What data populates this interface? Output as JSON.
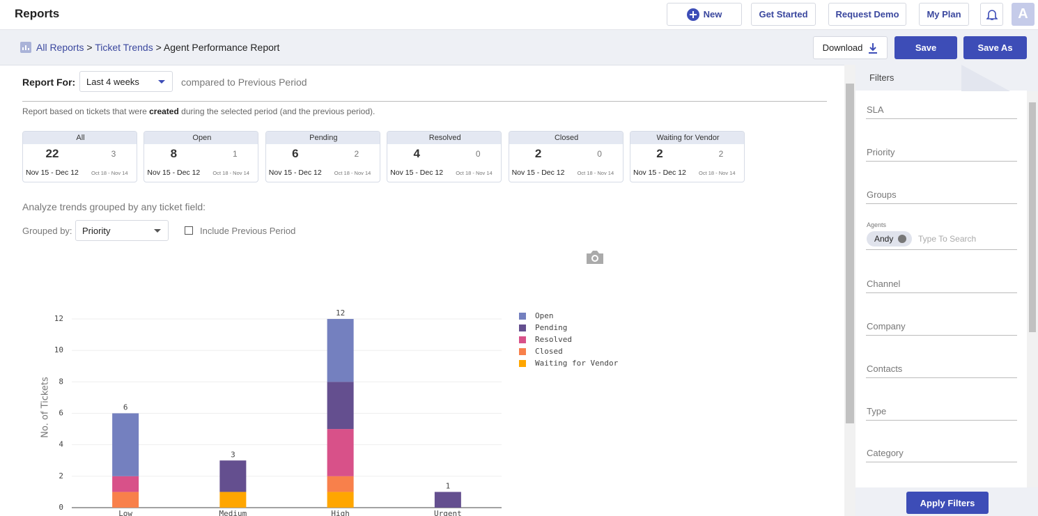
{
  "header": {
    "title": "Reports",
    "buttons": [
      "New",
      "Get Started",
      "Request Demo",
      "My Plan"
    ],
    "avatar": "A"
  },
  "toolbar": {
    "breadcrumb": [
      "All Reports",
      "Ticket Trends",
      "Agent Performance Report"
    ],
    "separator": ">",
    "download": "Download",
    "save": "Save",
    "save_as": "Save As"
  },
  "report": {
    "report_for_label": "Report For:",
    "period": "Last 4 weeks",
    "compared": "compared to Previous Period",
    "note_before": "Report based on tickets that were",
    "note_bold": "created",
    "note_after": "during the selected period (and the previous period).",
    "cards": [
      {
        "label": "All",
        "current": 22,
        "previous": 3,
        "current_range": "Nov 15 - Dec 12",
        "previous_range": "Oct 18 - Nov 14"
      },
      {
        "label": "Open",
        "current": 8,
        "previous": 1,
        "current_range": "Nov 15 - Dec 12",
        "previous_range": "Oct 18 - Nov 14"
      },
      {
        "label": "Pending",
        "current": 6,
        "previous": 2,
        "current_range": "Nov 15 - Dec 12",
        "previous_range": "Oct 18 - Nov 14"
      },
      {
        "label": "Resolved",
        "current": 4,
        "previous": 0,
        "current_range": "Nov 15 - Dec 12",
        "previous_range": "Oct 18 - Nov 14"
      },
      {
        "label": "Closed",
        "current": 2,
        "previous": 0,
        "current_range": "Nov 15 - Dec 12",
        "previous_range": "Oct 18 - Nov 14"
      },
      {
        "label": "Waiting for Vendor",
        "current": 2,
        "previous": 2,
        "current_range": "Nov 15 - Dec 12",
        "previous_range": "Oct 18 - Nov 14"
      }
    ],
    "analyze": "Analyze trends grouped by any ticket field:",
    "grouped_label": "Grouped by:",
    "grouped_value": "Priority",
    "include_previous": "Include Previous Period"
  },
  "chart_data": {
    "type": "stacked_bar",
    "ylabel": "No. of Tickets",
    "categories": [
      "Low",
      "Medium",
      "High",
      "Urgent"
    ],
    "series": [
      {
        "name": "Open",
        "color": "#7480bf",
        "values": [
          4,
          0,
          4,
          0
        ]
      },
      {
        "name": "Pending",
        "color": "#644f8f",
        "values": [
          0,
          2,
          3,
          1
        ]
      },
      {
        "name": "Resolved",
        "color": "#d85189",
        "values": [
          1,
          0,
          3,
          0
        ]
      },
      {
        "name": "Closed",
        "color": "#f8804b",
        "values": [
          1,
          0,
          1,
          0
        ]
      },
      {
        "name": "Waiting for Vendor",
        "color": "#ffa600",
        "values": [
          0,
          1,
          1,
          0
        ]
      }
    ],
    "totals": [
      6,
      3,
      12,
      1
    ],
    "ylim": [
      0,
      12.6
    ],
    "yticks": [
      0,
      2,
      4,
      6,
      8,
      10,
      12
    ],
    "grid": true
  },
  "filters": {
    "title": "Filters",
    "fields": [
      "SLA",
      "Priority",
      "Groups",
      "Agents",
      "Channel",
      "Company",
      "Contacts",
      "Type",
      "Category"
    ],
    "agent_chip": "Andy",
    "agents_placeholder": "Type To Search",
    "apply": "Apply Filters"
  }
}
